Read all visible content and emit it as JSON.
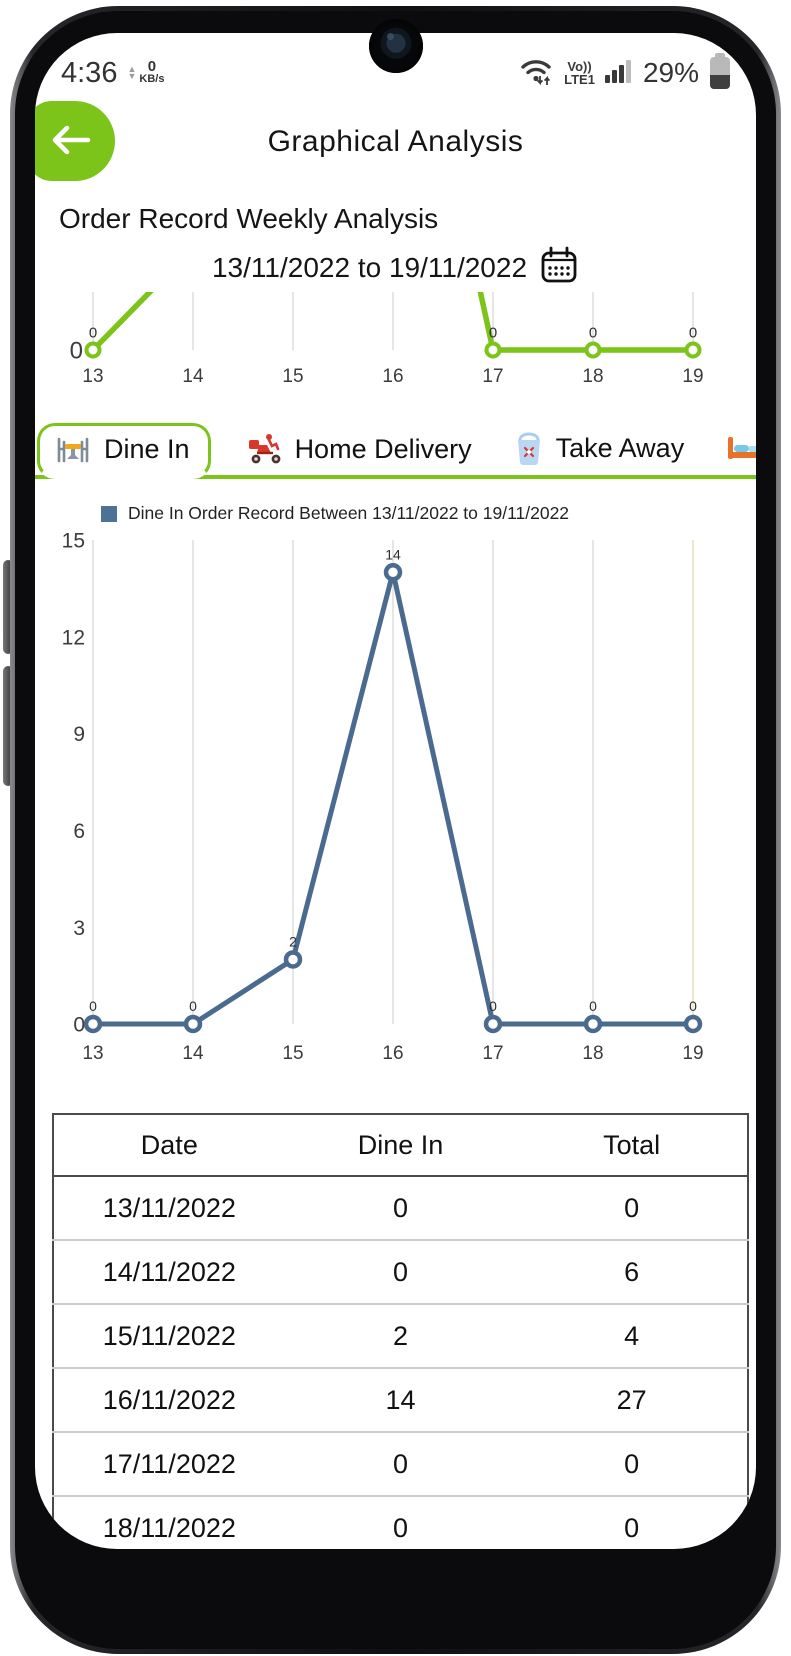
{
  "status_bar": {
    "time": "4:36",
    "net_speed": {
      "value": "0",
      "unit": "KB/s"
    },
    "volte_label": "Vo))",
    "network_label": "LTE1",
    "battery_percent": "29%"
  },
  "header": {
    "title": "Graphical Analysis"
  },
  "section": {
    "title": "Order Record Weekly Analysis",
    "date_range": "13/11/2022 to 19/11/2022"
  },
  "tabs": [
    {
      "label": "Dine In",
      "icon": "dine-in-table-icon",
      "active": true
    },
    {
      "label": "Home Delivery",
      "icon": "delivery-scooter-icon",
      "active": false
    },
    {
      "label": "Take Away",
      "icon": "takeaway-bag-icon",
      "active": false
    },
    {
      "label": "",
      "icon": "bed-icon",
      "active": false
    }
  ],
  "chart_data": [
    {
      "type": "line",
      "name": "weekly-total-overview",
      "x": [
        13,
        14,
        15,
        16,
        17,
        18,
        19
      ],
      "values": [
        0,
        6,
        4,
        27,
        0,
        0,
        0
      ],
      "visible_point_labels": [
        13,
        17,
        18,
        19
      ],
      "y_ticks": [
        0
      ],
      "color": "#7cc419",
      "grid": "vertical",
      "note": "viewport clipped just above baseline; only zero-value points and labels visible"
    },
    {
      "type": "line",
      "name": "dine-in-weekly",
      "legend": "Dine In Order Record Between 13/11/2022 to 19/11/2022",
      "legend_color": "#4d7298",
      "x": [
        13,
        14,
        15,
        16,
        17,
        18,
        19
      ],
      "values": [
        0,
        0,
        2,
        14,
        0,
        0,
        0
      ],
      "point_labels": [
        0,
        0,
        2,
        14,
        0,
        0,
        0
      ],
      "y_ticks": [
        0,
        3,
        6,
        9,
        12,
        15
      ],
      "ylim": [
        0,
        15
      ],
      "color": "#4a6a8f",
      "grid": "vertical",
      "last_gridline_color": "#e9d7b4"
    }
  ],
  "table": {
    "headers": [
      "Date",
      "Dine In",
      "Total"
    ],
    "rows": [
      [
        "13/11/2022",
        "0",
        "0"
      ],
      [
        "14/11/2022",
        "0",
        "6"
      ],
      [
        "15/11/2022",
        "2",
        "4"
      ],
      [
        "16/11/2022",
        "14",
        "27"
      ],
      [
        "17/11/2022",
        "0",
        "0"
      ],
      [
        "18/11/2022",
        "0",
        "0"
      ]
    ]
  },
  "colors": {
    "accent_green": "#7cc419",
    "chart_blue": "#4a6a8f"
  }
}
